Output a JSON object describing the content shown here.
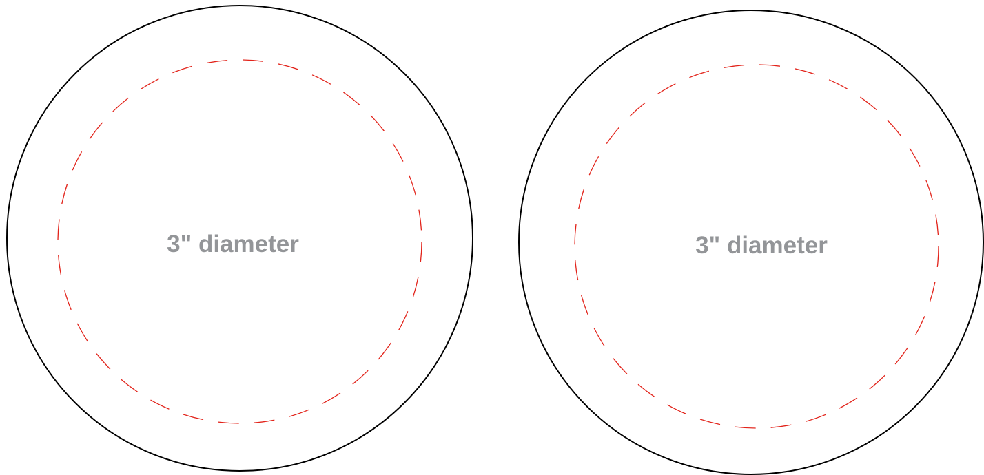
{
  "template": {
    "colors": {
      "cut_line": "#000000",
      "safe_line": "#e2231a",
      "label": "#939598",
      "background": "#ffffff"
    },
    "circles": [
      {
        "label": "3\" diameter"
      },
      {
        "label": "3\" diameter"
      }
    ]
  }
}
